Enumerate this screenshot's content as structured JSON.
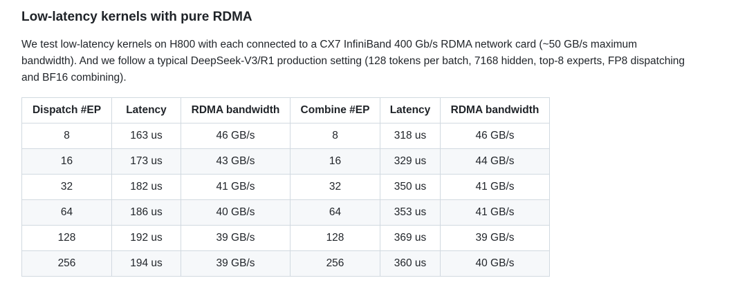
{
  "section": {
    "heading": "Low-latency kernels with pure RDMA",
    "description": "We test low-latency kernels on H800 with each connected to a CX7 InfiniBand 400 Gb/s RDMA network card (~50 GB/s maximum bandwidth). And we follow a typical DeepSeek-V3/R1 production setting (128 tokens per batch, 7168 hidden, top-8 experts, FP8 dispatching and BF16 combining)."
  },
  "table": {
    "headers": [
      "Dispatch #EP",
      "Latency",
      "RDMA bandwidth",
      "Combine #EP",
      "Latency",
      "RDMA bandwidth"
    ],
    "rows": [
      [
        "8",
        "163 us",
        "46 GB/s",
        "8",
        "318 us",
        "46 GB/s"
      ],
      [
        "16",
        "173 us",
        "43 GB/s",
        "16",
        "329 us",
        "44 GB/s"
      ],
      [
        "32",
        "182 us",
        "41 GB/s",
        "32",
        "350 us",
        "41 GB/s"
      ],
      [
        "64",
        "186 us",
        "40 GB/s",
        "64",
        "353 us",
        "41 GB/s"
      ],
      [
        "128",
        "192 us",
        "39 GB/s",
        "128",
        "369 us",
        "39 GB/s"
      ],
      [
        "256",
        "194 us",
        "39 GB/s",
        "256",
        "360 us",
        "40 GB/s"
      ]
    ]
  },
  "colors": {
    "text": "#1f2328",
    "border": "#d1d9e0",
    "striped_row": "#f6f8fa"
  }
}
